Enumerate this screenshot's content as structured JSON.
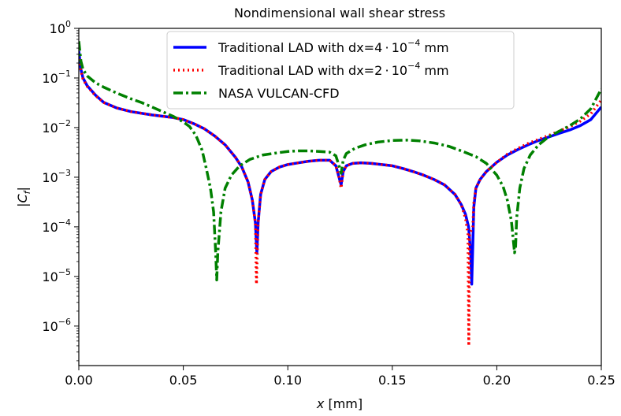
{
  "chart_data": {
    "type": "line",
    "title": "Nondimensional wall shear stress",
    "xlabel": "x [mm]",
    "ylabel": "|C_f|",
    "xlim": [
      0.0,
      0.25
    ],
    "ylim": [
      1.6e-07,
      1.0
    ],
    "yscale": "log",
    "grid": false,
    "legend_position": "top-center",
    "x_ticks": [
      {
        "value": 0.0,
        "label": "0.00"
      },
      {
        "value": 0.05,
        "label": "0.05"
      },
      {
        "value": 0.1,
        "label": "0.10"
      },
      {
        "value": 0.15,
        "label": "0.15"
      },
      {
        "value": 0.2,
        "label": "0.20"
      },
      {
        "value": 0.25,
        "label": "0.25"
      }
    ],
    "y_ticks": [
      {
        "value": 1,
        "base": "10",
        "exp": "0"
      },
      {
        "value": 0.1,
        "base": "10",
        "exp": "−1"
      },
      {
        "value": 0.01,
        "base": "10",
        "exp": "−2"
      },
      {
        "value": 0.001,
        "base": "10",
        "exp": "−3"
      },
      {
        "value": 0.0001,
        "base": "10",
        "exp": "−4"
      },
      {
        "value": 1e-05,
        "base": "10",
        "exp": "−5"
      },
      {
        "value": 1e-06,
        "base": "10",
        "exp": "−6"
      }
    ],
    "series": [
      {
        "name": "Traditional LAD with dx=4·10⁻⁴ mm",
        "legend": {
          "prefix": "Traditional LAD with dx=4",
          "exp": "−4",
          "suffix": " mm"
        },
        "color": "#0000ff",
        "style": "solid",
        "points": [
          [
            0.0,
            0.35
          ],
          [
            0.001,
            0.15
          ],
          [
            0.002,
            0.1
          ],
          [
            0.004,
            0.07
          ],
          [
            0.008,
            0.045
          ],
          [
            0.012,
            0.032
          ],
          [
            0.018,
            0.025
          ],
          [
            0.025,
            0.021
          ],
          [
            0.035,
            0.018
          ],
          [
            0.045,
            0.016
          ],
          [
            0.05,
            0.0145
          ],
          [
            0.055,
            0.012
          ],
          [
            0.06,
            0.0095
          ],
          [
            0.065,
            0.0068
          ],
          [
            0.07,
            0.0045
          ],
          [
            0.075,
            0.0025
          ],
          [
            0.078,
            0.0016
          ],
          [
            0.081,
            0.0008
          ],
          [
            0.083,
            0.00035
          ],
          [
            0.0845,
            0.00012
          ],
          [
            0.0852,
            3e-05
          ],
          [
            0.0858,
            0.00012
          ],
          [
            0.087,
            0.00045
          ],
          [
            0.089,
            0.0009
          ],
          [
            0.092,
            0.0013
          ],
          [
            0.096,
            0.0016
          ],
          [
            0.1,
            0.0018
          ],
          [
            0.105,
            0.00195
          ],
          [
            0.11,
            0.0021
          ],
          [
            0.115,
            0.0022
          ],
          [
            0.12,
            0.0022
          ],
          [
            0.123,
            0.0017
          ],
          [
            0.1245,
            0.001
          ],
          [
            0.1255,
            0.0007
          ],
          [
            0.1265,
            0.0013
          ],
          [
            0.128,
            0.0017
          ],
          [
            0.131,
            0.0019
          ],
          [
            0.135,
            0.00195
          ],
          [
            0.14,
            0.0019
          ],
          [
            0.145,
            0.0018
          ],
          [
            0.15,
            0.0017
          ],
          [
            0.155,
            0.0015
          ],
          [
            0.16,
            0.0013
          ],
          [
            0.165,
            0.0011
          ],
          [
            0.17,
            0.0009
          ],
          [
            0.175,
            0.0007
          ],
          [
            0.18,
            0.00045
          ],
          [
            0.183,
            0.00028
          ],
          [
            0.185,
            0.00018
          ],
          [
            0.1865,
            0.0001
          ],
          [
            0.1875,
            3e-05
          ],
          [
            0.188,
            7e-06
          ],
          [
            0.1885,
            4e-05
          ],
          [
            0.189,
            0.00025
          ],
          [
            0.19,
            0.0006
          ],
          [
            0.192,
            0.0009
          ],
          [
            0.195,
            0.0013
          ],
          [
            0.2,
            0.002
          ],
          [
            0.205,
            0.0028
          ],
          [
            0.21,
            0.0036
          ],
          [
            0.215,
            0.0045
          ],
          [
            0.22,
            0.0055
          ],
          [
            0.225,
            0.0065
          ],
          [
            0.23,
            0.0077
          ],
          [
            0.235,
            0.009
          ],
          [
            0.24,
            0.011
          ],
          [
            0.245,
            0.0145
          ],
          [
            0.25,
            0.026
          ]
        ]
      },
      {
        "name": "Traditional LAD with dx=2·10⁻⁴ mm",
        "legend": {
          "prefix": "Traditional LAD with dx=2",
          "exp": "−4",
          "suffix": " mm"
        },
        "color": "#ff0000",
        "style": "dotted",
        "points": [
          [
            0.0,
            0.3
          ],
          [
            0.001,
            0.14
          ],
          [
            0.002,
            0.095
          ],
          [
            0.004,
            0.068
          ],
          [
            0.008,
            0.044
          ],
          [
            0.012,
            0.032
          ],
          [
            0.018,
            0.025
          ],
          [
            0.025,
            0.021
          ],
          [
            0.035,
            0.018
          ],
          [
            0.045,
            0.016
          ],
          [
            0.05,
            0.0145
          ],
          [
            0.055,
            0.012
          ],
          [
            0.06,
            0.0095
          ],
          [
            0.065,
            0.0068
          ],
          [
            0.07,
            0.0045
          ],
          [
            0.075,
            0.0025
          ],
          [
            0.078,
            0.0016
          ],
          [
            0.081,
            0.0008
          ],
          [
            0.083,
            0.00035
          ],
          [
            0.0845,
            0.00012
          ],
          [
            0.085,
            7e-06
          ],
          [
            0.0858,
            0.00012
          ],
          [
            0.087,
            0.00045
          ],
          [
            0.089,
            0.0009
          ],
          [
            0.092,
            0.0013
          ],
          [
            0.096,
            0.0016
          ],
          [
            0.1,
            0.0018
          ],
          [
            0.105,
            0.00195
          ],
          [
            0.11,
            0.0021
          ],
          [
            0.115,
            0.0022
          ],
          [
            0.12,
            0.0022
          ],
          [
            0.123,
            0.0017
          ],
          [
            0.1245,
            0.001
          ],
          [
            0.1255,
            0.0006
          ],
          [
            0.1265,
            0.0013
          ],
          [
            0.128,
            0.0017
          ],
          [
            0.131,
            0.0019
          ],
          [
            0.135,
            0.00195
          ],
          [
            0.14,
            0.0019
          ],
          [
            0.145,
            0.0018
          ],
          [
            0.15,
            0.0017
          ],
          [
            0.155,
            0.0015
          ],
          [
            0.16,
            0.0013
          ],
          [
            0.165,
            0.0011
          ],
          [
            0.17,
            0.0009
          ],
          [
            0.175,
            0.0007
          ],
          [
            0.18,
            0.00045
          ],
          [
            0.183,
            0.00028
          ],
          [
            0.185,
            0.00015
          ],
          [
            0.1862,
            7e-05
          ],
          [
            0.1866,
            4e-07
          ],
          [
            0.187,
            7e-05
          ],
          [
            0.188,
            9e-05
          ],
          [
            0.1885,
            0.0001
          ],
          [
            0.189,
            0.0003
          ],
          [
            0.19,
            0.0006
          ],
          [
            0.192,
            0.0009
          ],
          [
            0.195,
            0.0013
          ],
          [
            0.2,
            0.002
          ],
          [
            0.205,
            0.0029
          ],
          [
            0.21,
            0.0038
          ],
          [
            0.215,
            0.0048
          ],
          [
            0.22,
            0.0058
          ],
          [
            0.225,
            0.007
          ],
          [
            0.23,
            0.0085
          ],
          [
            0.235,
            0.0105
          ],
          [
            0.24,
            0.0135
          ],
          [
            0.245,
            0.019
          ],
          [
            0.25,
            0.036
          ]
        ]
      },
      {
        "name": "NASA VULCAN-CFD",
        "legend": {
          "prefix": "NASA VULCAN-CFD",
          "exp": "",
          "suffix": ""
        },
        "color": "#008000",
        "style": "dashdot",
        "points": [
          [
            0.0,
            0.55
          ],
          [
            0.001,
            0.22
          ],
          [
            0.002,
            0.15
          ],
          [
            0.004,
            0.11
          ],
          [
            0.008,
            0.08
          ],
          [
            0.012,
            0.065
          ],
          [
            0.018,
            0.05
          ],
          [
            0.025,
            0.038
          ],
          [
            0.03,
            0.032
          ],
          [
            0.035,
            0.026
          ],
          [
            0.04,
            0.021
          ],
          [
            0.045,
            0.017
          ],
          [
            0.05,
            0.013
          ],
          [
            0.053,
            0.0105
          ],
          [
            0.056,
            0.007
          ],
          [
            0.059,
            0.0035
          ],
          [
            0.061,
            0.0015
          ],
          [
            0.063,
            0.0006
          ],
          [
            0.0645,
            0.0002
          ],
          [
            0.0655,
            3e-05
          ],
          [
            0.066,
            8.5e-06
          ],
          [
            0.0665,
            3e-05
          ],
          [
            0.068,
            0.0002
          ],
          [
            0.07,
            0.0006
          ],
          [
            0.073,
            0.0011
          ],
          [
            0.077,
            0.0017
          ],
          [
            0.082,
            0.0023
          ],
          [
            0.088,
            0.0028
          ],
          [
            0.095,
            0.0031
          ],
          [
            0.1,
            0.0033
          ],
          [
            0.105,
            0.0034
          ],
          [
            0.11,
            0.0034
          ],
          [
            0.115,
            0.0033
          ],
          [
            0.12,
            0.0032
          ],
          [
            0.123,
            0.0027
          ],
          [
            0.1245,
            0.0017
          ],
          [
            0.1255,
            0.0012
          ],
          [
            0.1265,
            0.0022
          ],
          [
            0.128,
            0.003
          ],
          [
            0.132,
            0.0038
          ],
          [
            0.137,
            0.0045
          ],
          [
            0.143,
            0.0051
          ],
          [
            0.15,
            0.0055
          ],
          [
            0.157,
            0.0056
          ],
          [
            0.163,
            0.0054
          ],
          [
            0.17,
            0.0049
          ],
          [
            0.177,
            0.0042
          ],
          [
            0.183,
            0.0034
          ],
          [
            0.19,
            0.0026
          ],
          [
            0.195,
            0.0019
          ],
          [
            0.2,
            0.0011
          ],
          [
            0.203,
            0.00065
          ],
          [
            0.205,
            0.00035
          ],
          [
            0.207,
            0.00013
          ],
          [
            0.2085,
            3e-05
          ],
          [
            0.209,
            4e-05
          ],
          [
            0.2095,
            0.00015
          ],
          [
            0.211,
            0.0006
          ],
          [
            0.213,
            0.0015
          ],
          [
            0.216,
            0.0028
          ],
          [
            0.22,
            0.0045
          ],
          [
            0.225,
            0.0066
          ],
          [
            0.23,
            0.0085
          ],
          [
            0.235,
            0.011
          ],
          [
            0.24,
            0.015
          ],
          [
            0.245,
            0.024
          ],
          [
            0.25,
            0.06
          ]
        ]
      }
    ]
  }
}
